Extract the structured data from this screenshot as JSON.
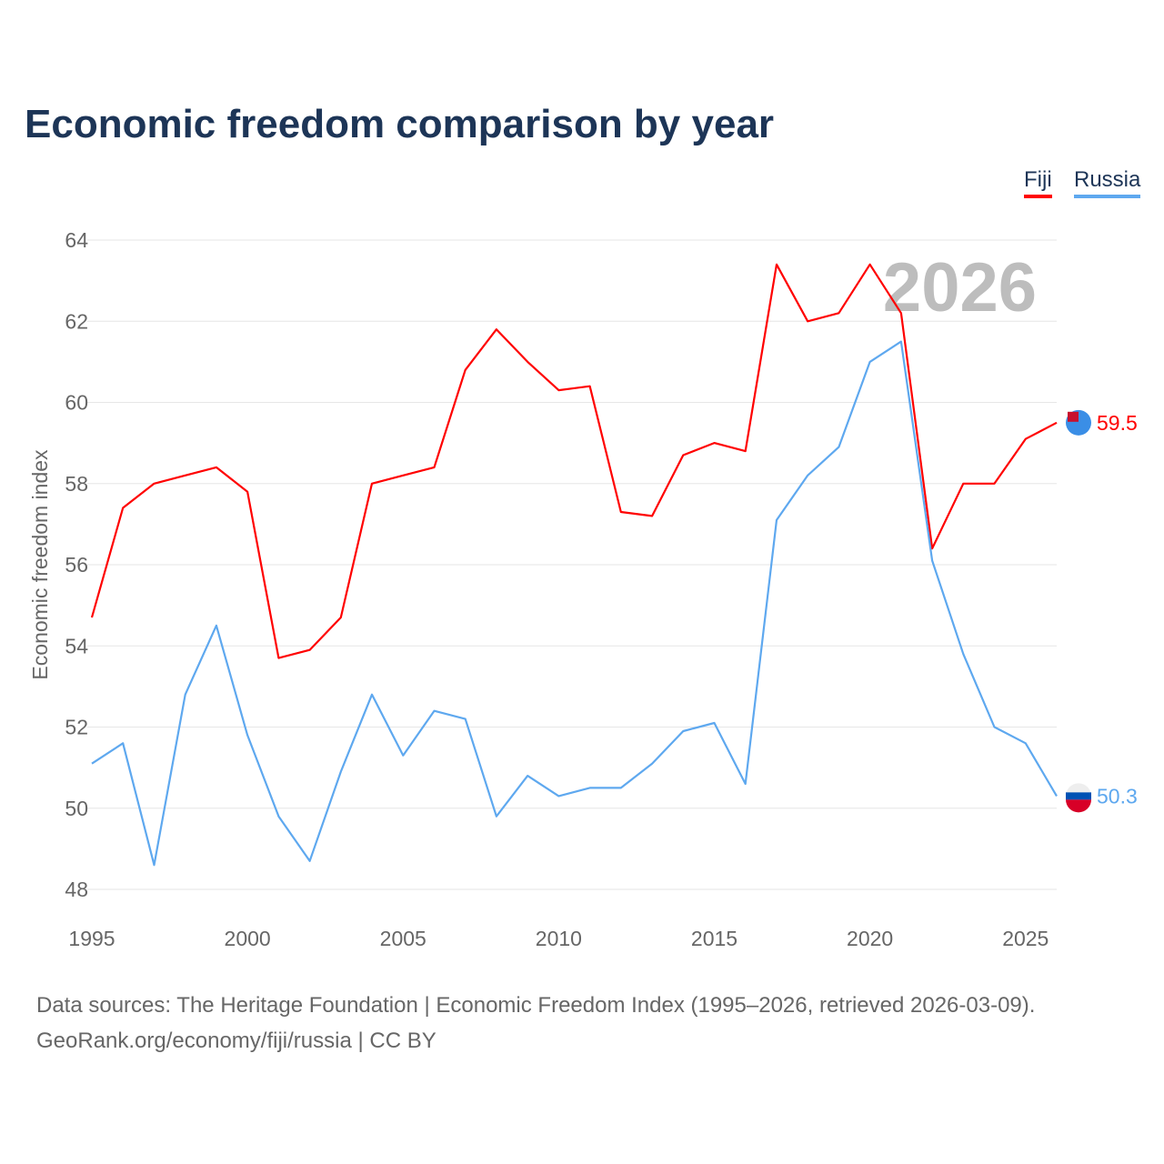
{
  "chart_data": {
    "type": "line",
    "title": "Economic freedom comparison by year",
    "xlabel": "",
    "ylabel": "Economic freedom index",
    "xlim": [
      1995,
      2026
    ],
    "ylim": [
      48,
      64
    ],
    "yticks": [
      48,
      50,
      52,
      54,
      56,
      58,
      60,
      62,
      64
    ],
    "xticks": [
      1995,
      2000,
      2005,
      2010,
      2015,
      2020,
      2025
    ],
    "grid": true,
    "legend": "top-right",
    "watermark_year": "2026",
    "x": [
      1995,
      1996,
      1997,
      1998,
      1999,
      2000,
      2001,
      2002,
      2003,
      2004,
      2005,
      2006,
      2007,
      2008,
      2009,
      2010,
      2011,
      2012,
      2013,
      2014,
      2015,
      2016,
      2017,
      2018,
      2019,
      2020,
      2021,
      2022,
      2023,
      2024,
      2025,
      2026
    ],
    "series": [
      {
        "name": "Fiji",
        "color": "#ff0000",
        "end_label": "59.5",
        "values": [
          54.7,
          57.4,
          58.0,
          58.2,
          58.4,
          57.8,
          53.7,
          53.9,
          54.7,
          58.0,
          58.2,
          58.4,
          60.8,
          61.8,
          61.0,
          60.3,
          60.4,
          57.3,
          57.2,
          58.7,
          59.0,
          58.8,
          63.4,
          62.0,
          62.2,
          63.4,
          62.2,
          56.4,
          58.0,
          58.0,
          59.1,
          59.5
        ]
      },
      {
        "name": "Russia",
        "color": "#5ea8ef",
        "end_label": "50.3",
        "values": [
          51.1,
          51.6,
          48.6,
          52.8,
          54.5,
          51.8,
          49.8,
          48.7,
          50.9,
          52.8,
          51.3,
          52.4,
          52.2,
          49.8,
          50.8,
          50.3,
          50.5,
          50.5,
          51.1,
          51.9,
          52.1,
          50.6,
          57.1,
          58.2,
          58.9,
          61.0,
          61.5,
          56.1,
          53.8,
          52.0,
          51.6,
          50.3
        ]
      }
    ]
  },
  "footer": {
    "line1": "Data sources: The Heritage Foundation | Economic Freedom Index (1995–2026, retrieved 2026-03-09).",
    "line2": "GeoRank.org/economy/fiji/russia | CC BY"
  }
}
